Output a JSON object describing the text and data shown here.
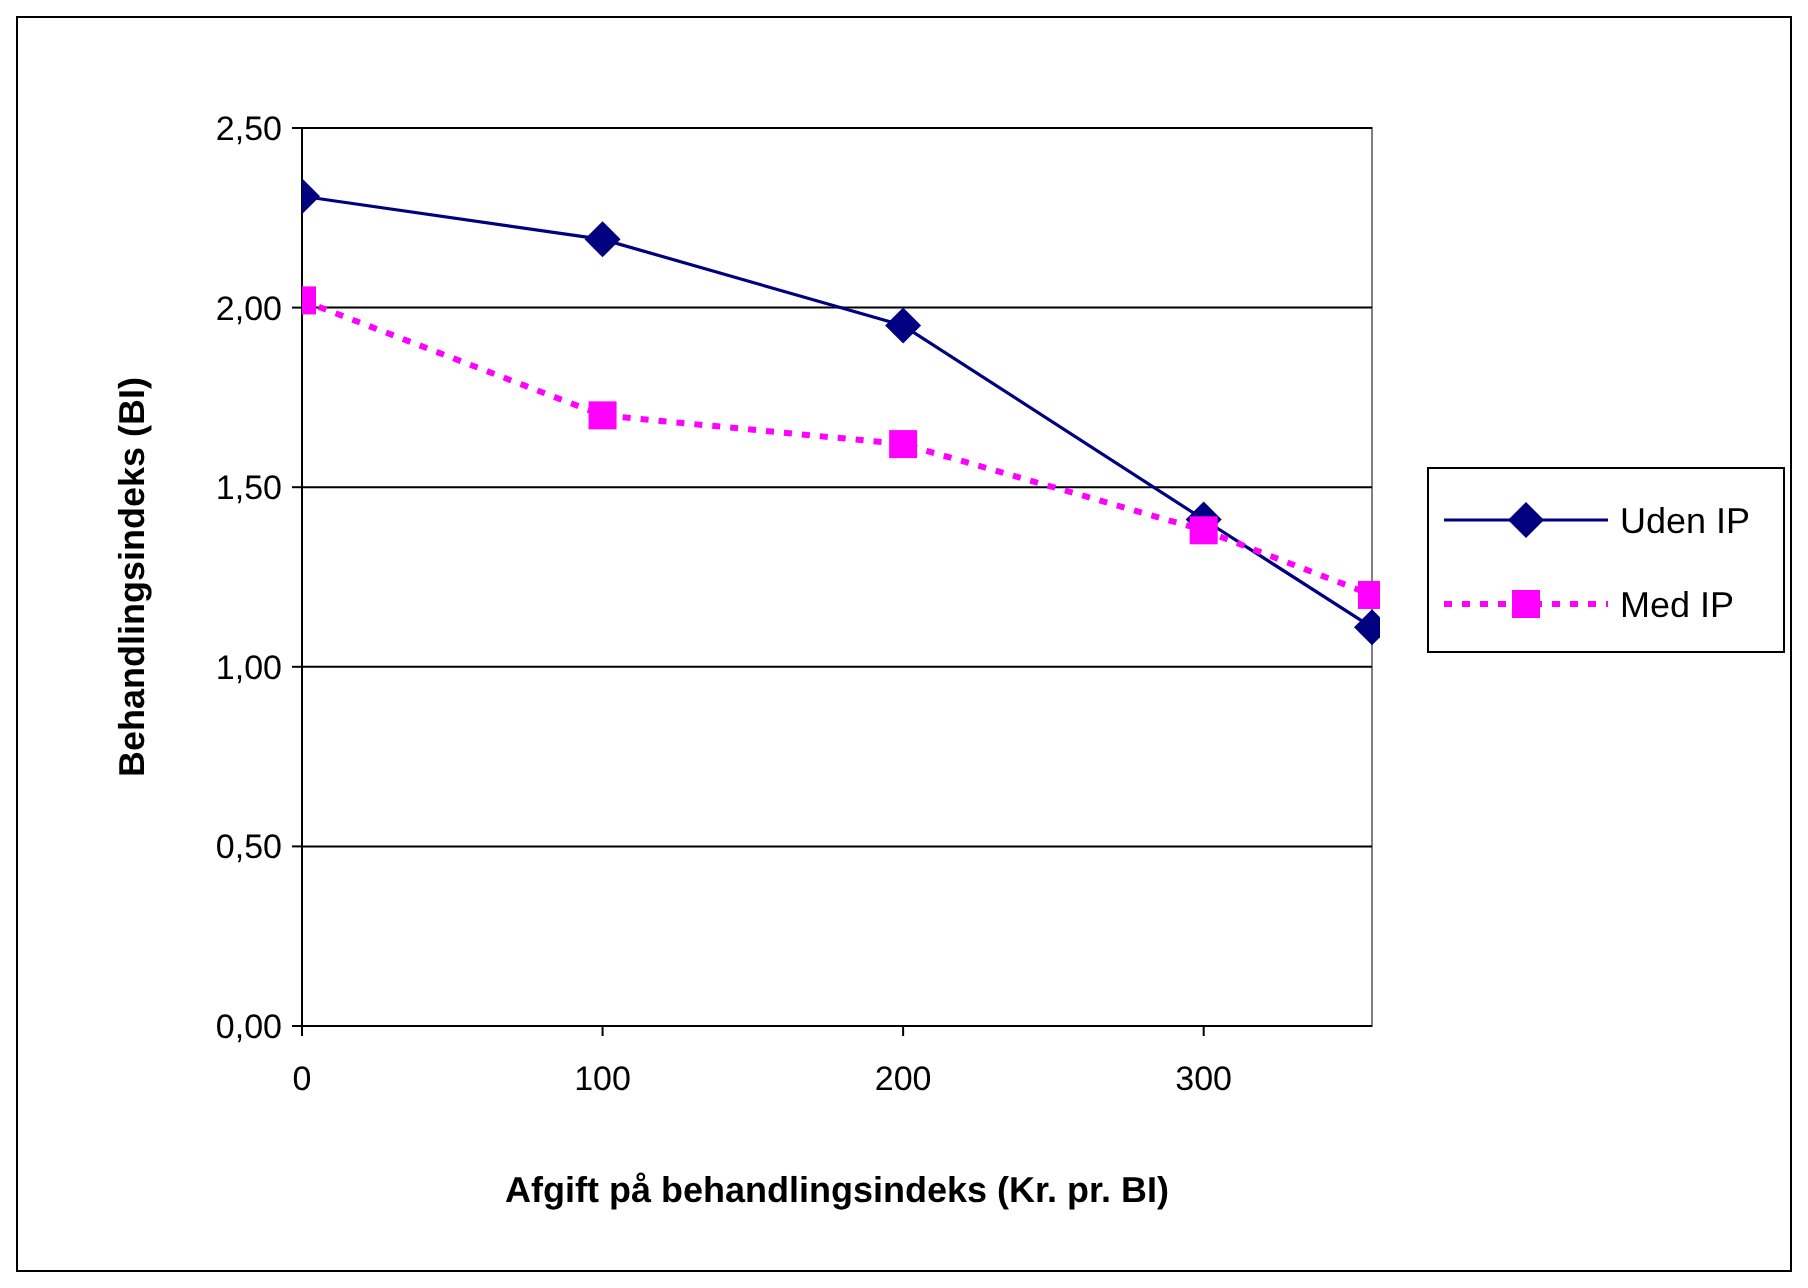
{
  "chart_data": {
    "type": "line",
    "xlabel": "Afgift på behandlingsindeks (Kr. pr. BI)",
    "ylabel": "Behandlingsindeks (BI)",
    "x": [
      0,
      100,
      200,
      300,
      356
    ],
    "series": [
      {
        "name": "Uden IP",
        "color": "#000080",
        "values": [
          2.31,
          2.19,
          1.95,
          1.41,
          1.11
        ],
        "marker": "diamond",
        "line_style": "solid"
      },
      {
        "name": "Med IP",
        "color": "#ff00ff",
        "values": [
          2.02,
          1.7,
          1.62,
          1.38,
          1.2
        ],
        "marker": "square",
        "line_style": "dotted"
      }
    ],
    "xlim": [
      0,
      356
    ],
    "xticks": [
      0,
      100,
      200,
      300
    ],
    "ylim": [
      0,
      2.5
    ],
    "yticks": [
      {
        "value": 0,
        "label": "0,00"
      },
      {
        "value": 0.5,
        "label": "0,50"
      },
      {
        "value": 1,
        "label": "1,00"
      },
      {
        "value": 1.5,
        "label": "1,50"
      },
      {
        "value": 2,
        "label": "2,00"
      },
      {
        "value": 2.5,
        "label": "2,50"
      }
    ],
    "grid": "y",
    "legend": "right"
  }
}
